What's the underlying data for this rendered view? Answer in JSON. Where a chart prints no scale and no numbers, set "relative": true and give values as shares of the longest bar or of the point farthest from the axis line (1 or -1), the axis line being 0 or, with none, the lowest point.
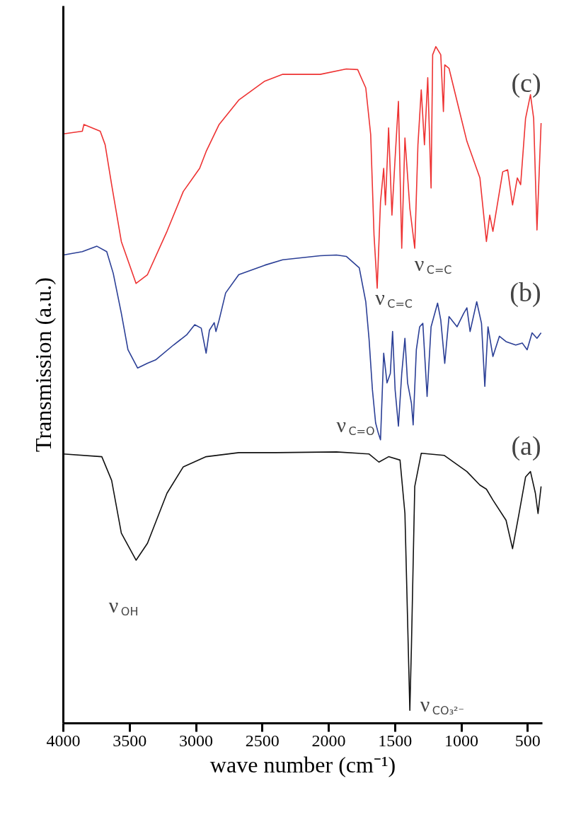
{
  "chart_data": {
    "type": "line",
    "relative": true,
    "xlabel": "wave number (cm⁻¹)",
    "ylabel": "Transmission (a.u.)",
    "xlim": [
      4000,
      390
    ],
    "xticks": [
      4000,
      3500,
      3000,
      2500,
      2000,
      1500,
      1000,
      500
    ],
    "grid": false,
    "marker": "none",
    "line_style": "solid",
    "series": [
      {
        "name": "(c)",
        "color": "#ee3333",
        "x": [
          4000,
          3857,
          3845,
          3722,
          3685,
          3636,
          3563,
          3452,
          3366,
          3219,
          3096,
          2973,
          2924,
          2826,
          2678,
          2482,
          2347,
          2064,
          1868,
          1782,
          1721,
          1684,
          1659,
          1635,
          1610,
          1586,
          1573,
          1549,
          1524,
          1500,
          1475,
          1450,
          1426,
          1389,
          1352,
          1328,
          1303,
          1279,
          1254,
          1229,
          1217,
          1193,
          1156,
          1136,
          1126,
          1094,
          1008,
          959,
          861,
          812,
          787,
          763,
          689,
          652,
          615,
          579,
          554,
          517,
          480,
          456,
          431,
          400
        ],
        "values": [
          0.871,
          0.875,
          0.885,
          0.875,
          0.855,
          0.796,
          0.712,
          0.65,
          0.663,
          0.727,
          0.786,
          0.82,
          0.845,
          0.885,
          0.921,
          0.949,
          0.959,
          0.959,
          0.967,
          0.966,
          0.939,
          0.87,
          0.722,
          0.643,
          0.771,
          0.82,
          0.766,
          0.88,
          0.751,
          0.835,
          0.919,
          0.702,
          0.865,
          0.761,
          0.702,
          0.855,
          0.936,
          0.855,
          0.954,
          0.791,
          0.988,
          1.0,
          0.988,
          0.904,
          0.973,
          0.968,
          0.899,
          0.86,
          0.806,
          0.712,
          0.751,
          0.727,
          0.815,
          0.818,
          0.766,
          0.806,
          0.796,
          0.894,
          0.929,
          0.894,
          0.729,
          0.887
        ]
      },
      {
        "name": "(b)",
        "color": "#2b3f96",
        "x": [
          4000,
          3857,
          3747,
          3673,
          3624,
          3563,
          3513,
          3440,
          3366,
          3305,
          3170,
          3071,
          3010,
          2961,
          2924,
          2899,
          2863,
          2850,
          2826,
          2777,
          2678,
          2482,
          2347,
          2064,
          1942,
          1868,
          1770,
          1721,
          1696,
          1671,
          1647,
          1627,
          1610,
          1586,
          1561,
          1536,
          1519,
          1500,
          1475,
          1450,
          1426,
          1406,
          1377,
          1364,
          1340,
          1315,
          1291,
          1259,
          1229,
          1180,
          1156,
          1126,
          1094,
          1033,
          983,
          959,
          935,
          885,
          849,
          824,
          800,
          763,
          714,
          664,
          591,
          542,
          505,
          468,
          431,
          400
        ],
        "values": [
          0.692,
          0.697,
          0.705,
          0.697,
          0.665,
          0.606,
          0.552,
          0.525,
          0.532,
          0.537,
          0.559,
          0.574,
          0.589,
          0.584,
          0.547,
          0.581,
          0.592,
          0.579,
          0.596,
          0.636,
          0.663,
          0.677,
          0.685,
          0.691,
          0.692,
          0.69,
          0.673,
          0.623,
          0.567,
          0.493,
          0.444,
          0.429,
          0.419,
          0.547,
          0.503,
          0.517,
          0.579,
          0.493,
          0.439,
          0.517,
          0.569,
          0.503,
          0.473,
          0.441,
          0.552,
          0.586,
          0.591,
          0.483,
          0.586,
          0.621,
          0.596,
          0.532,
          0.601,
          0.586,
          0.606,
          0.614,
          0.579,
          0.623,
          0.591,
          0.498,
          0.586,
          0.542,
          0.572,
          0.564,
          0.559,
          0.562,
          0.552,
          0.577,
          0.569,
          0.577
        ]
      },
      {
        "name": "(a)",
        "color": "#111111",
        "x": [
          4000,
          3710,
          3636,
          3563,
          3452,
          3366,
          3219,
          3096,
          2924,
          2678,
          2396,
          1942,
          1696,
          1622,
          1549,
          1463,
          1426,
          1389,
          1377,
          1352,
          1303,
          1131,
          959,
          861,
          812,
          763,
          664,
          615,
          566,
          517,
          480,
          443,
          423,
          400
        ],
        "values": [
          0.398,
          0.394,
          0.359,
          0.281,
          0.241,
          0.266,
          0.34,
          0.379,
          0.394,
          0.4,
          0.4,
          0.401,
          0.398,
          0.386,
          0.394,
          0.389,
          0.31,
          0.019,
          0.113,
          0.35,
          0.399,
          0.396,
          0.372,
          0.352,
          0.346,
          0.33,
          0.3,
          0.258,
          0.31,
          0.364,
          0.372,
          0.34,
          0.31,
          0.35
        ]
      }
    ],
    "annotations": [
      "ν$_{OH}$",
      "ν$_{CO₃²⁻}$",
      "ν$_{C=O}$",
      "ν$_{C=C}$",
      "ν$_{C=C}$"
    ]
  }
}
